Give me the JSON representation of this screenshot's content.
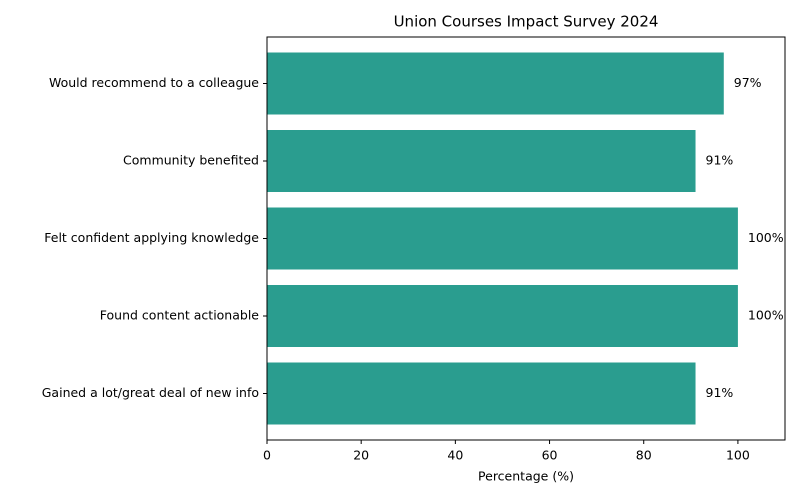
{
  "chart_data": {
    "type": "bar",
    "orientation": "horizontal",
    "title": "Union Courses Impact Survey 2024",
    "x_label": "Percentage (%)",
    "categories": [
      "Gained a lot/great deal of new info",
      "Found content actionable",
      "Felt confident applying knowledge",
      "Community benefited",
      "Would recommend to a colleague"
    ],
    "values": [
      91,
      100,
      100,
      91,
      97
    ],
    "value_labels": [
      "91%",
      "100%",
      "100%",
      "91%",
      "97%"
    ],
    "color": "#2a9d8f",
    "xlim": [
      0,
      110
    ],
    "xticks": [
      0,
      20,
      40,
      60,
      80,
      100
    ],
    "grid": false
  }
}
